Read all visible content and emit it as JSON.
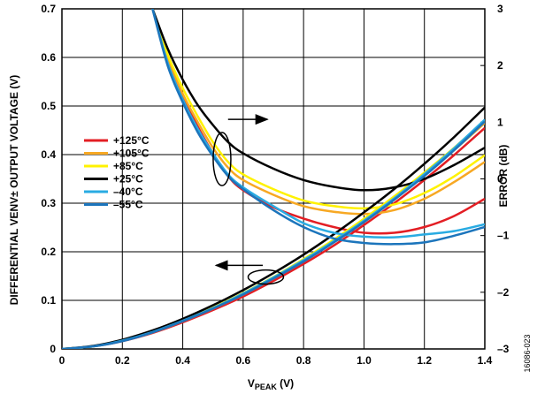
{
  "chart_data": {
    "type": "line",
    "xlabel_main": "V",
    "xlabel_sub": "PEAK",
    "xlabel_unit": " (V)",
    "ylabel_left": "DIFFERENTIAL VENV± OUTPUT VOLTAGE (V)",
    "ylabel_right": "ERROR (dB)",
    "figure_id": "16086-023",
    "xlim": [
      0,
      1.4
    ],
    "ylim_left": [
      0,
      0.7
    ],
    "ylim_right": [
      -3,
      3
    ],
    "x_ticks": [
      "0",
      "0.2",
      "0.4",
      "0.6",
      "0.8",
      "1.0",
      "1.2",
      "1.4"
    ],
    "y_left_ticks": [
      "0",
      "0.1",
      "0.2",
      "0.3",
      "0.4",
      "0.5",
      "0.6",
      "0.7"
    ],
    "y_right_ticks": [
      "–3",
      "–2",
      "–1",
      "0",
      "1",
      "2",
      "3"
    ],
    "grid": true,
    "legend_position": "left-middle",
    "series": [
      {
        "name": "+125°C",
        "color": "#e31e24",
        "output_voltage": {
          "x": [
            0,
            0.1,
            0.2,
            0.3,
            0.4,
            0.5,
            0.6,
            0.7,
            0.8,
            0.9,
            1.0,
            1.1,
            1.2,
            1.3,
            1.4
          ],
          "y": [
            0,
            0.005,
            0.016,
            0.033,
            0.055,
            0.08,
            0.108,
            0.14,
            0.175,
            0.213,
            0.255,
            0.3,
            0.348,
            0.4,
            0.455
          ]
        },
        "error": {
          "x": [
            0.3,
            0.35,
            0.4,
            0.45,
            0.5,
            0.55,
            0.6,
            0.7,
            0.8,
            0.9,
            1.0,
            1.1,
            1.2,
            1.3,
            1.4
          ],
          "y": [
            3.0,
            2.1,
            1.45,
            0.92,
            0.45,
            0.05,
            -0.2,
            -0.5,
            -0.7,
            -0.85,
            -0.95,
            -0.95,
            -0.85,
            -0.65,
            -0.35
          ]
        }
      },
      {
        "name": "+105°C",
        "color": "#f7a823",
        "output_voltage": {
          "x": [
            0,
            0.1,
            0.2,
            0.3,
            0.4,
            0.5,
            0.6,
            0.7,
            0.8,
            0.9,
            1.0,
            1.1,
            1.2,
            1.3,
            1.4
          ],
          "y": [
            0,
            0.005,
            0.017,
            0.034,
            0.057,
            0.083,
            0.112,
            0.145,
            0.181,
            0.22,
            0.263,
            0.309,
            0.358,
            0.41,
            0.465
          ]
        },
        "error": {
          "x": [
            0.3,
            0.35,
            0.4,
            0.45,
            0.5,
            0.55,
            0.6,
            0.7,
            0.8,
            0.9,
            1.0,
            1.1,
            1.2,
            1.3,
            1.4
          ],
          "y": [
            3.0,
            2.15,
            1.5,
            1.0,
            0.55,
            0.2,
            -0.02,
            -0.28,
            -0.48,
            -0.58,
            -0.62,
            -0.55,
            -0.35,
            -0.05,
            0.3
          ]
        }
      },
      {
        "name": "+85°C",
        "color": "#fff200",
        "output_voltage": {
          "x": [
            0,
            0.1,
            0.2,
            0.3,
            0.4,
            0.5,
            0.6,
            0.7,
            0.8,
            0.9,
            1.0,
            1.1,
            1.2,
            1.3,
            1.4
          ],
          "y": [
            0,
            0.005,
            0.017,
            0.035,
            0.058,
            0.085,
            0.115,
            0.148,
            0.185,
            0.225,
            0.268,
            0.314,
            0.363,
            0.415,
            0.47
          ]
        },
        "error": {
          "x": [
            0.3,
            0.35,
            0.4,
            0.45,
            0.5,
            0.55,
            0.6,
            0.7,
            0.8,
            0.9,
            1.0,
            1.1,
            1.2,
            1.3,
            1.4
          ],
          "y": [
            3.0,
            2.2,
            1.6,
            1.1,
            0.65,
            0.3,
            0.08,
            -0.18,
            -0.38,
            -0.48,
            -0.52,
            -0.45,
            -0.25,
            0.05,
            0.42
          ]
        }
      },
      {
        "name": "+25°C",
        "color": "#000000",
        "output_voltage": {
          "x": [
            0,
            0.1,
            0.2,
            0.3,
            0.4,
            0.5,
            0.6,
            0.7,
            0.8,
            0.9,
            1.0,
            1.1,
            1.2,
            1.3,
            1.4
          ],
          "y": [
            0,
            0.006,
            0.019,
            0.038,
            0.062,
            0.09,
            0.121,
            0.156,
            0.194,
            0.236,
            0.281,
            0.329,
            0.381,
            0.437,
            0.497
          ]
        },
        "error": {
          "x": [
            0.3,
            0.35,
            0.4,
            0.45,
            0.5,
            0.55,
            0.6,
            0.7,
            0.8,
            0.9,
            1.0,
            1.1,
            1.2,
            1.3,
            1.4
          ],
          "y": [
            3.0,
            2.3,
            1.75,
            1.3,
            0.95,
            0.65,
            0.45,
            0.18,
            -0.02,
            -0.14,
            -0.2,
            -0.15,
            0.0,
            0.25,
            0.55
          ]
        }
      },
      {
        "name": "–40°C",
        "color": "#29abe2",
        "output_voltage": {
          "x": [
            0,
            0.1,
            0.2,
            0.3,
            0.4,
            0.5,
            0.6,
            0.7,
            0.8,
            0.9,
            1.0,
            1.1,
            1.2,
            1.3,
            1.4
          ],
          "y": [
            0,
            0.005,
            0.017,
            0.035,
            0.058,
            0.084,
            0.114,
            0.147,
            0.183,
            0.222,
            0.264,
            0.31,
            0.36,
            0.414,
            0.472
          ]
        },
        "error": {
          "x": [
            0.3,
            0.35,
            0.4,
            0.45,
            0.5,
            0.55,
            0.6,
            0.7,
            0.8,
            0.9,
            1.0,
            1.1,
            1.2,
            1.3,
            1.4
          ],
          "y": [
            3.0,
            2.05,
            1.4,
            0.88,
            0.45,
            0.08,
            -0.15,
            -0.48,
            -0.78,
            -0.95,
            -1.02,
            -1.03,
            -0.98,
            -0.92,
            -0.8
          ]
        }
      },
      {
        "name": "–55°C",
        "color": "#1c75bc",
        "output_voltage": {
          "x": [
            0,
            0.1,
            0.2,
            0.3,
            0.4,
            0.5,
            0.6,
            0.7,
            0.8,
            0.9,
            1.0,
            1.1,
            1.2,
            1.3,
            1.4
          ],
          "y": [
            0,
            0.005,
            0.016,
            0.034,
            0.057,
            0.083,
            0.112,
            0.145,
            0.18,
            0.219,
            0.261,
            0.307,
            0.356,
            0.41,
            0.468
          ]
        },
        "error": {
          "x": [
            0.3,
            0.35,
            0.4,
            0.45,
            0.5,
            0.55,
            0.6,
            0.7,
            0.8,
            0.9,
            1.0,
            1.1,
            1.2,
            1.3,
            1.4
          ],
          "y": [
            3.0,
            2.0,
            1.35,
            0.82,
            0.4,
            0.05,
            -0.18,
            -0.55,
            -0.85,
            -1.05,
            -1.13,
            -1.15,
            -1.12,
            -1.0,
            -0.85
          ]
        }
      }
    ]
  }
}
